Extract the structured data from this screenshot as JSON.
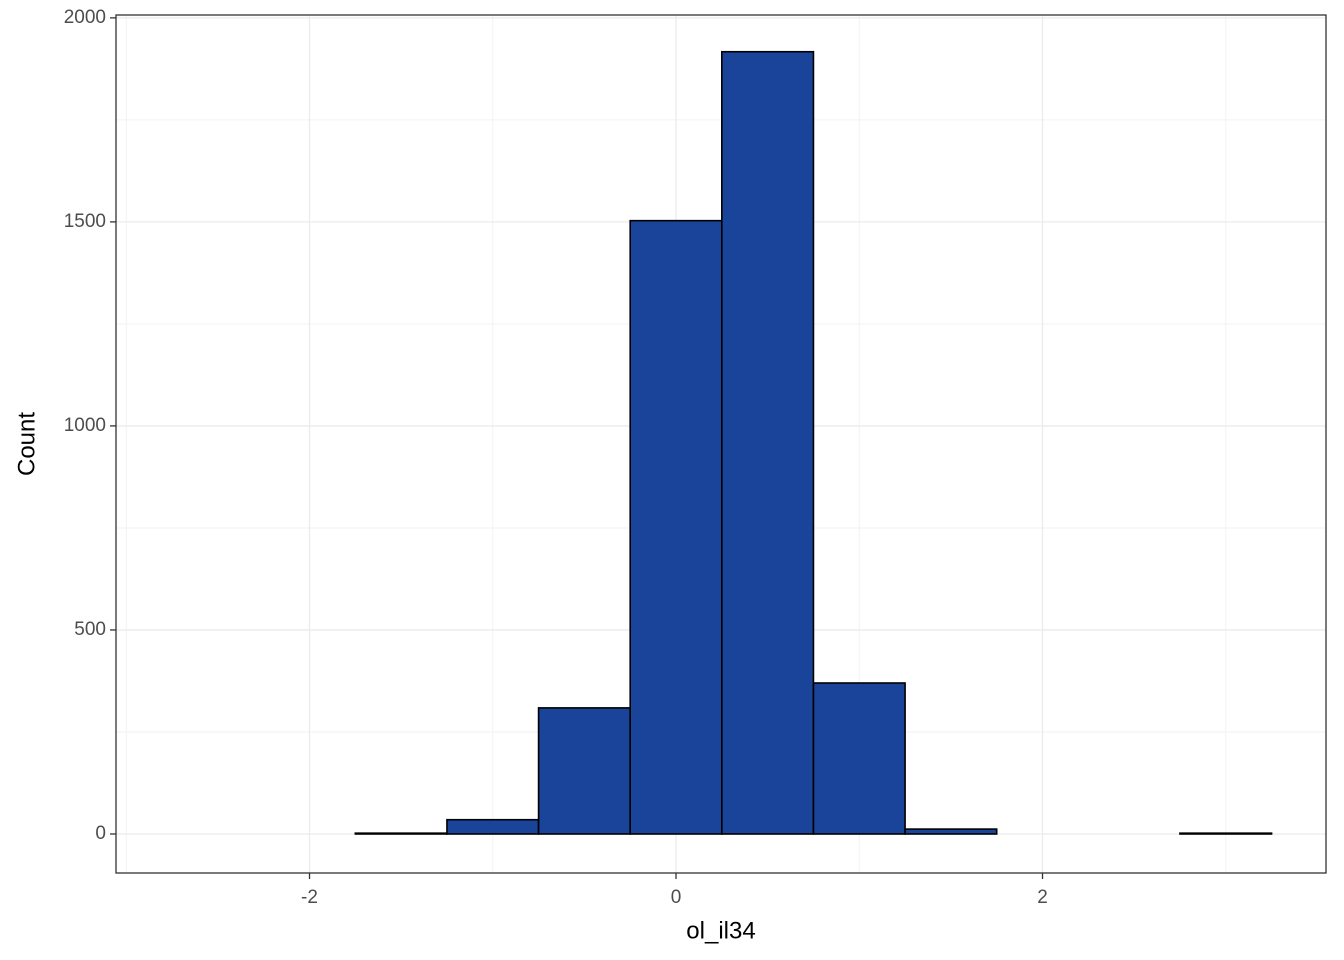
{
  "chart_data": {
    "type": "histogram",
    "x_label": "ol_il34",
    "y_label": "Count",
    "bins": [
      -2.75,
      -2.25,
      -1.75,
      -1.25,
      -0.75,
      -0.25,
      0.25,
      0.75,
      1.25,
      1.75,
      2.25,
      2.75,
      3.25
    ],
    "values": [
      0,
      0,
      2,
      35,
      309,
      1503,
      1917,
      370,
      12,
      0,
      0,
      2
    ],
    "color": "#1a4499",
    "xlim": [
      -3.056,
      3.547
    ],
    "ylim": [
      -95.6,
      2007
    ],
    "xticks": [
      -2,
      0,
      2
    ],
    "yticks": [
      0,
      500,
      1000,
      1500,
      2000
    ],
    "grid": true
  }
}
